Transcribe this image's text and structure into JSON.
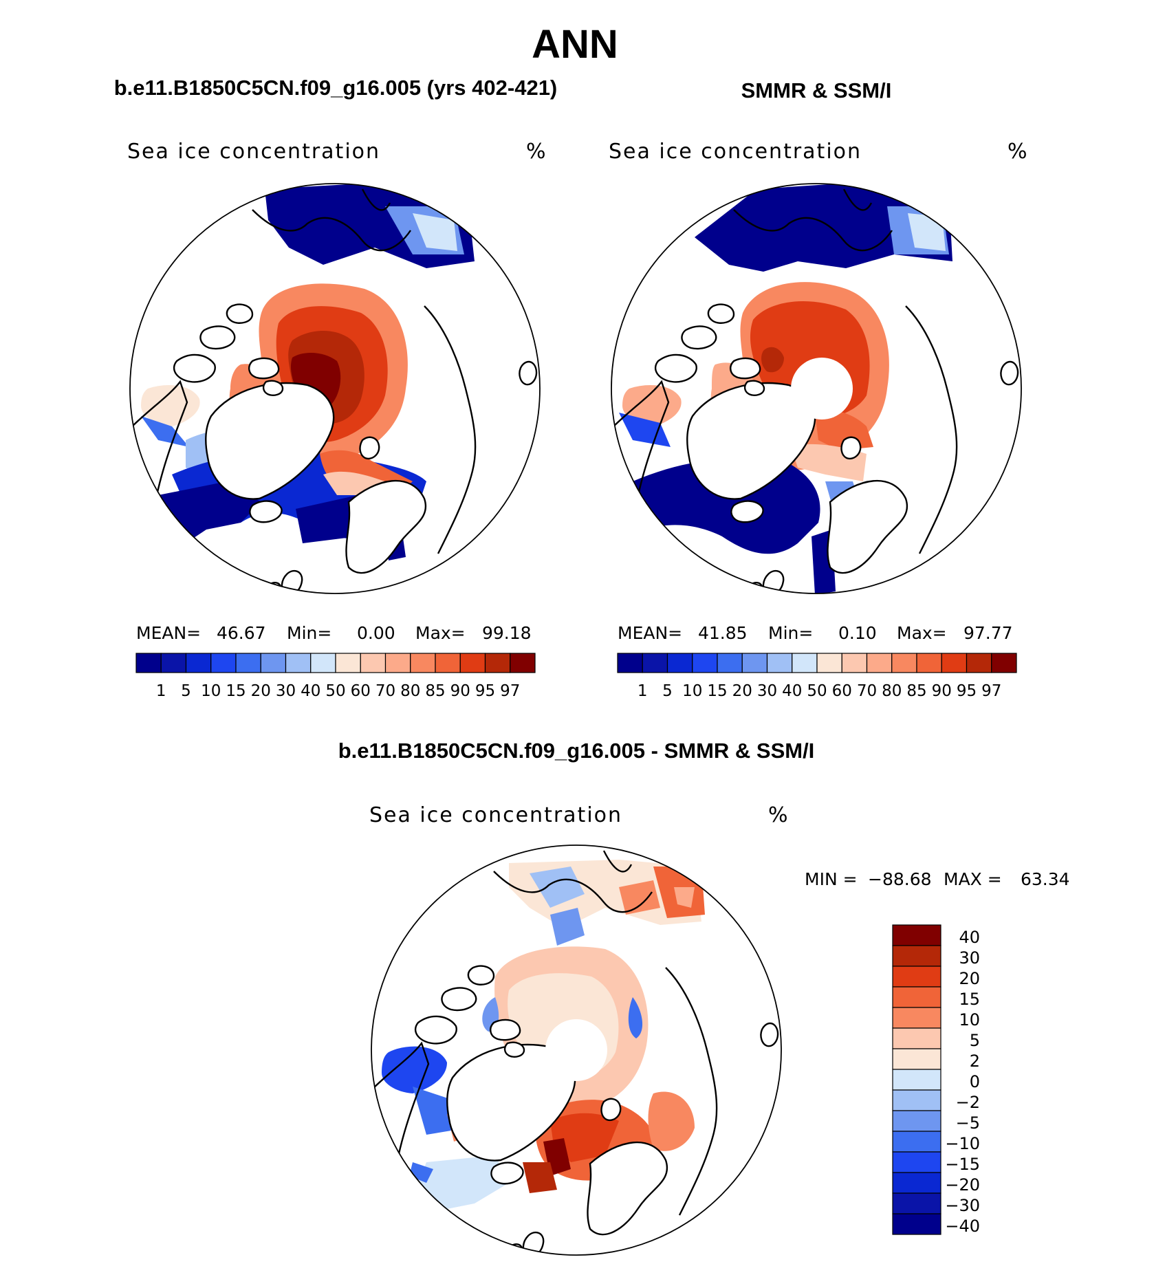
{
  "page_title": "ANN",
  "panels": [
    {
      "id": "model",
      "heading": "b.e11.B1850C5CN.f09_g16.005 (yrs 402-421)",
      "variable": "Sea ice concentration",
      "units": "%",
      "stats": {
        "mean_label": "MEAN=",
        "mean": "46.67",
        "min_label": "Min=",
        "min": "0.00",
        "max_label": "Max=",
        "max": "99.18"
      },
      "has_pole_hole": false
    },
    {
      "id": "obs",
      "heading": "SMMR & SSM/I",
      "variable": "Sea ice concentration",
      "units": "%",
      "stats": {
        "mean_label": "MEAN=",
        "mean": "41.85",
        "min_label": "Min=",
        "min": "0.10",
        "max_label": "Max=",
        "max": "97.77"
      },
      "has_pole_hole": true
    }
  ],
  "diff_panel": {
    "heading": "b.e11.B1850C5CN.f09_g16.005 - SMMR & SSM/I",
    "variable": "Sea ice concentration",
    "units": "%",
    "min_label": "MIN =",
    "min": "−88.68",
    "max_label": "MAX =",
    "max": "63.34"
  },
  "colorbars": {
    "concentration": {
      "colors": [
        "#00008c",
        "#0a14a8",
        "#0a28d2",
        "#1e46f0",
        "#3c6ef0",
        "#6e96f0",
        "#a0c0f5",
        "#d2e6fa",
        "#fbe6d6",
        "#fcc8b0",
        "#fcaa8a",
        "#f88860",
        "#f06438",
        "#e03c14",
        "#b42808",
        "#800000"
      ],
      "labels": [
        "1",
        "5",
        "10",
        "15",
        "20",
        "30",
        "40",
        "50",
        "60",
        "70",
        "80",
        "85",
        "90",
        "95",
        "97"
      ]
    },
    "difference": {
      "colors": [
        "#800000",
        "#b42808",
        "#e03c14",
        "#f06438",
        "#f88860",
        "#fcc8b0",
        "#fbe6d6",
        "#d2e6fa",
        "#a0c0f5",
        "#6e96f0",
        "#3c6ef0",
        "#1e46f0",
        "#0a28d2",
        "#0a14a8",
        "#00008c"
      ],
      "labels": [
        "40",
        "30",
        "20",
        "15",
        "10",
        "5",
        "2",
        "0",
        "−2",
        "−5",
        "−10",
        "−15",
        "−20",
        "−30",
        "−40"
      ]
    }
  }
}
